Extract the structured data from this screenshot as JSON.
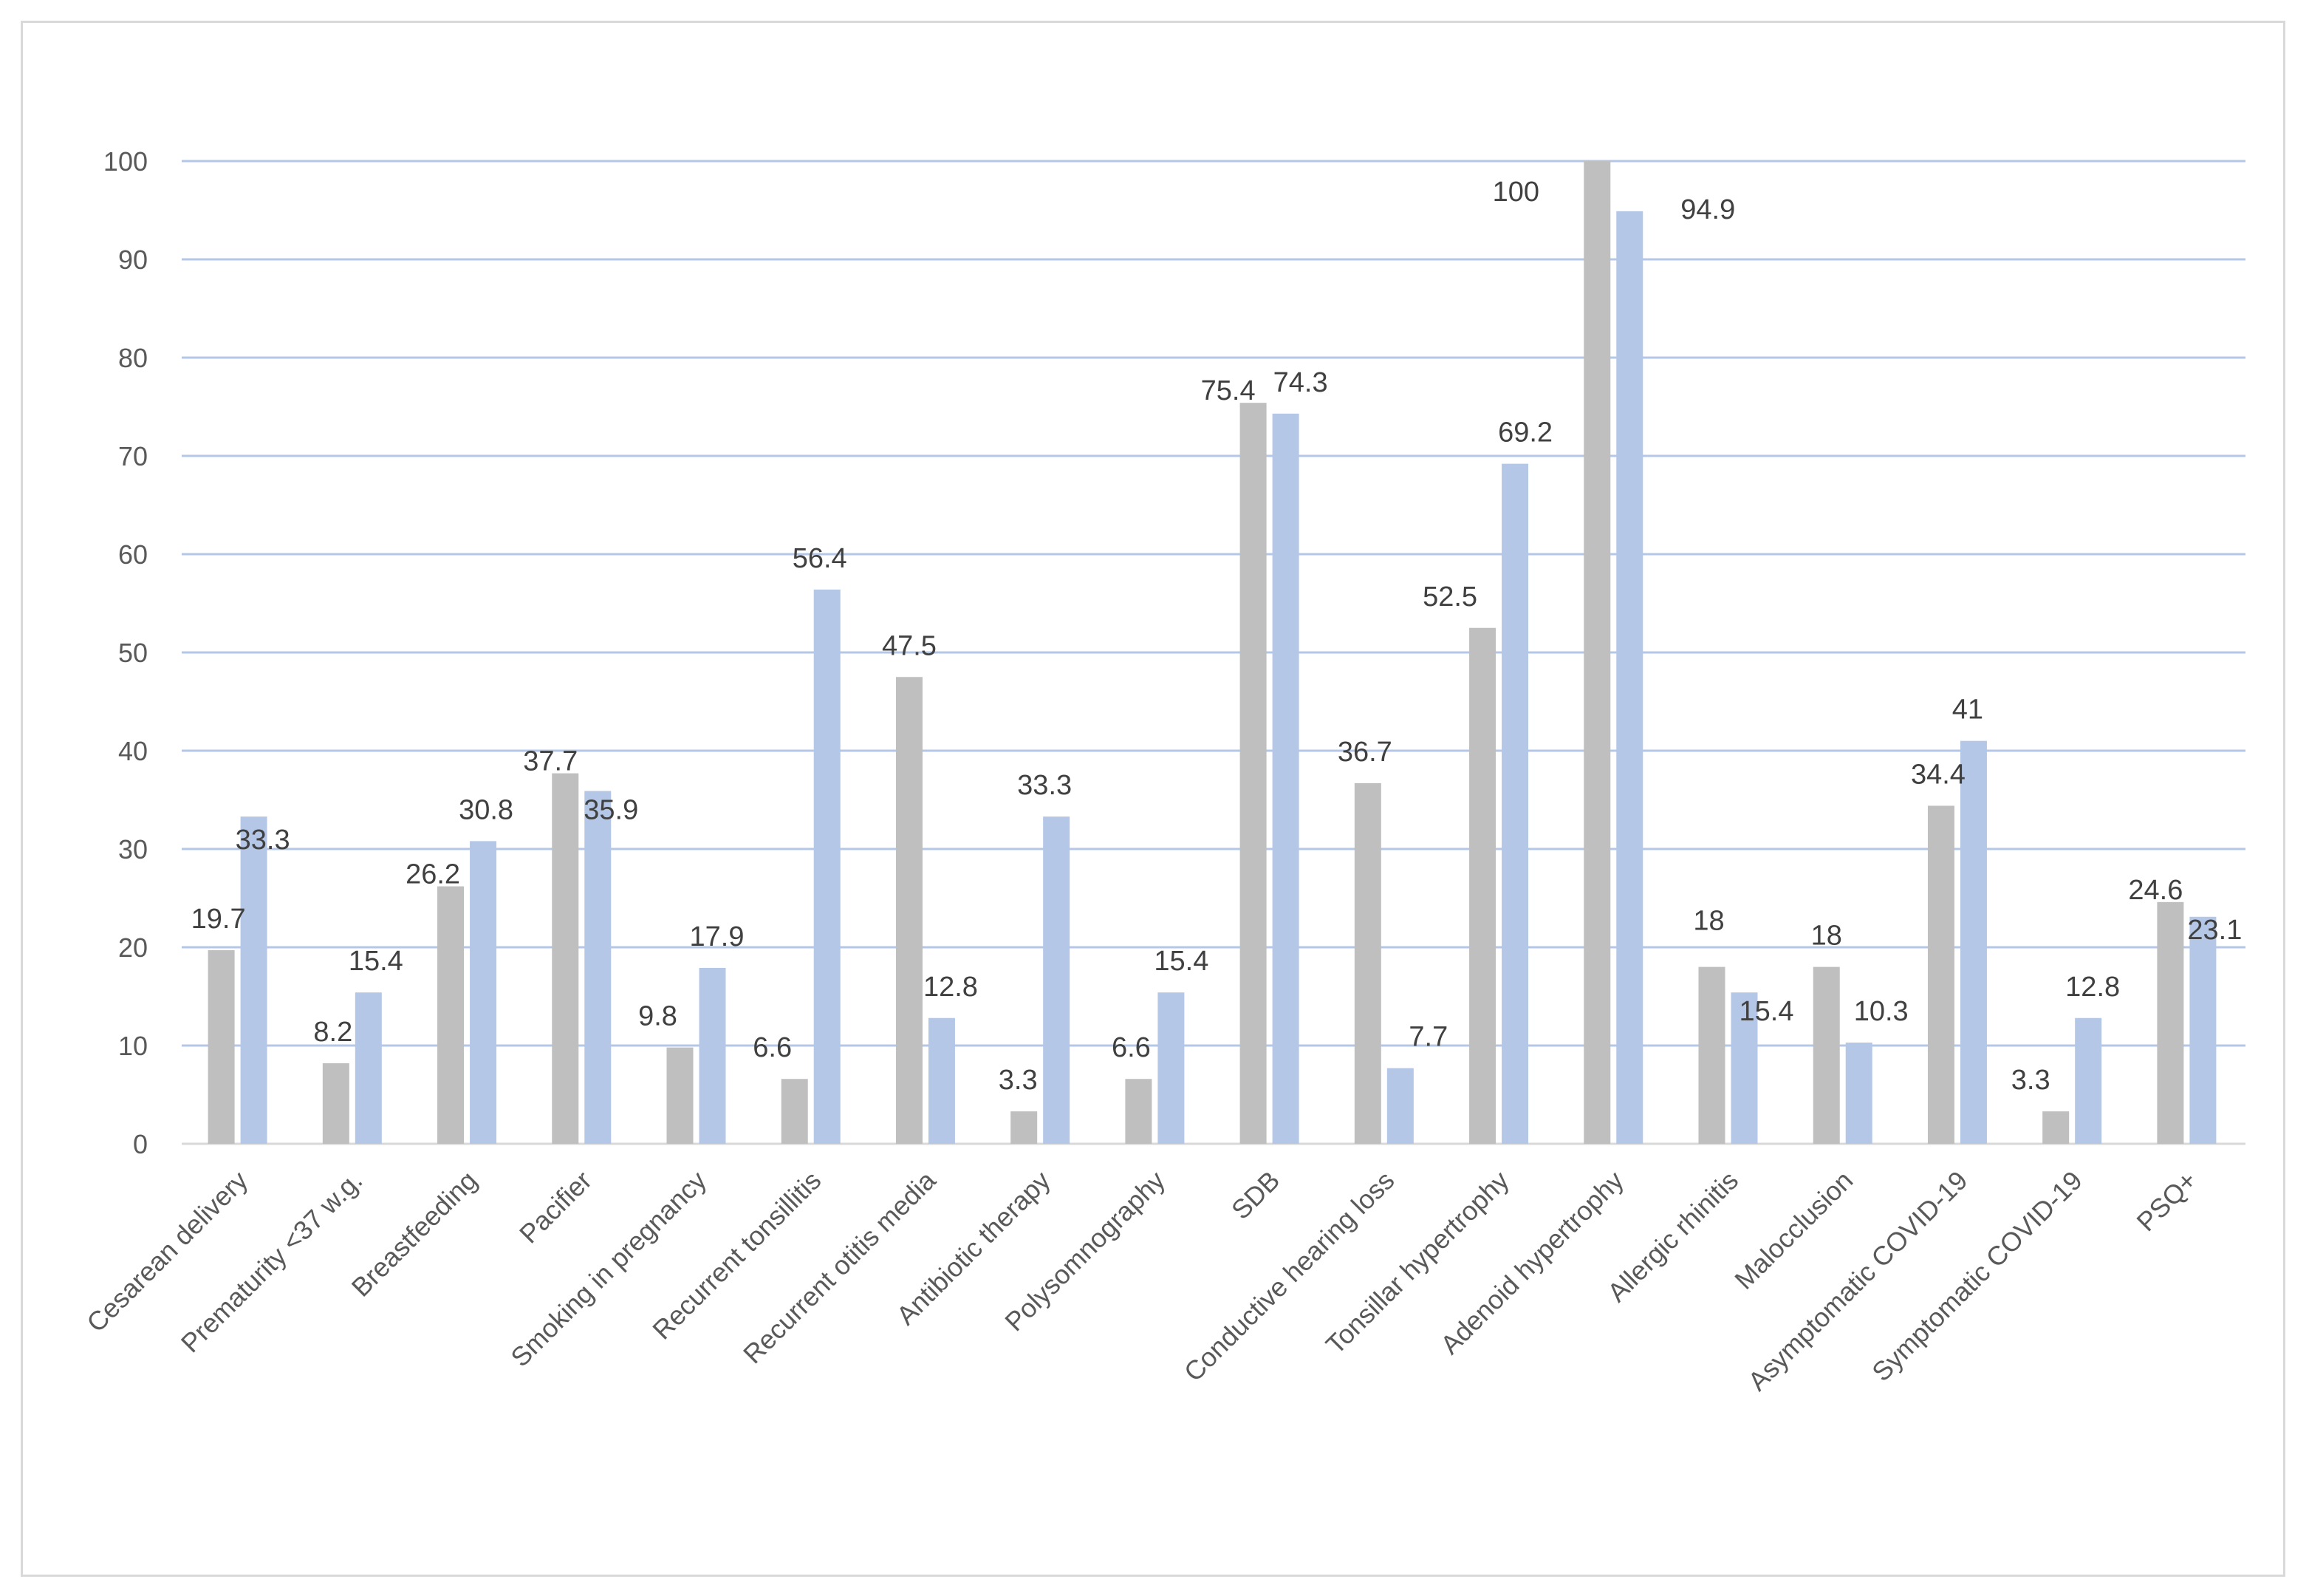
{
  "chart_data": {
    "type": "bar",
    "title": "",
    "xlabel": "",
    "ylabel": "",
    "ylim": [
      0,
      100
    ],
    "yticks": [
      0,
      10,
      20,
      30,
      40,
      50,
      60,
      70,
      80,
      90,
      100
    ],
    "grid": true,
    "legend": "none",
    "categories": [
      "Cesarean delivery",
      "Prematurity <37 w.g.",
      "Breastfeeding",
      "Pacifier",
      "Smoking in pregnancy",
      "Recurrent tonsillitis",
      "Recurrent otitis media",
      "Antibiotic therapy",
      "Polysomnography",
      "SDB",
      "Conductive hearing loss",
      "Tonsillar hypertrophy",
      "Adenoid hypertrophy",
      "Allergic rhinitis",
      "Malocclusion",
      "Asymptomatic COVID-19",
      "Symptomatic COVID-19",
      "PSQ+"
    ],
    "series": [
      {
        "color": "#bfbfbf",
        "values": [
          19.7,
          8.2,
          26.2,
          37.7,
          9.8,
          6.6,
          47.5,
          3.3,
          6.6,
          75.4,
          36.7,
          52.5,
          100,
          18,
          18,
          34.4,
          3.3,
          24.6
        ],
        "labels": [
          "19.7",
          "8.2",
          "26.2",
          "37.7",
          "9.8",
          "6.6",
          "47.5",
          "3.3",
          "6.6",
          "75.4",
          "36.7",
          "52.5",
          "100",
          "18",
          "18",
          "34.4",
          "3.3",
          "24.6"
        ]
      },
      {
        "color": "#b4c7e7",
        "values": [
          33.3,
          15.4,
          30.8,
          35.9,
          17.9,
          56.4,
          12.8,
          33.3,
          15.4,
          74.3,
          7.7,
          69.2,
          94.9,
          15.4,
          10.3,
          41,
          12.8,
          23.1
        ],
        "labels": [
          "33.3",
          "15.4",
          "30.8",
          "35.9",
          "17.9",
          "56.4",
          "12.8",
          "33.3",
          "15.4",
          "74.3",
          "7.7",
          "69.2",
          "94.9",
          "15.4",
          "10.3",
          "41",
          "12.8",
          "23.1"
        ]
      }
    ],
    "gridColor": "#b4c7e7",
    "axisColor": "#d9d9d9"
  }
}
